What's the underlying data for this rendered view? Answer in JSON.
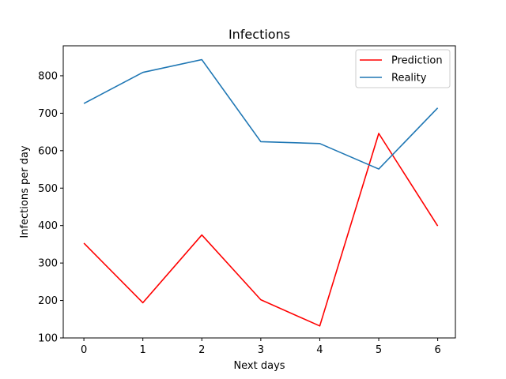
{
  "chart_data": {
    "type": "line",
    "title": "Infections",
    "xlabel": "Next days",
    "ylabel": "Infections per day",
    "x": [
      0,
      1,
      2,
      3,
      4,
      5,
      6
    ],
    "xlim": [
      -0.35,
      6.3
    ],
    "ylim": [
      100,
      880
    ],
    "xticks": [
      0,
      1,
      2,
      3,
      4,
      5,
      6
    ],
    "yticks": [
      100,
      200,
      300,
      400,
      500,
      600,
      700,
      800
    ],
    "grid": false,
    "legend_position": "top-right",
    "series": [
      {
        "name": "Prediction",
        "color": "#ff0000",
        "values": [
          353,
          194,
          375,
          202,
          132,
          646,
          399
        ]
      },
      {
        "name": "Reality",
        "color": "#1f77b4",
        "values": [
          726,
          809,
          843,
          624,
          619,
          551,
          714
        ]
      }
    ]
  }
}
